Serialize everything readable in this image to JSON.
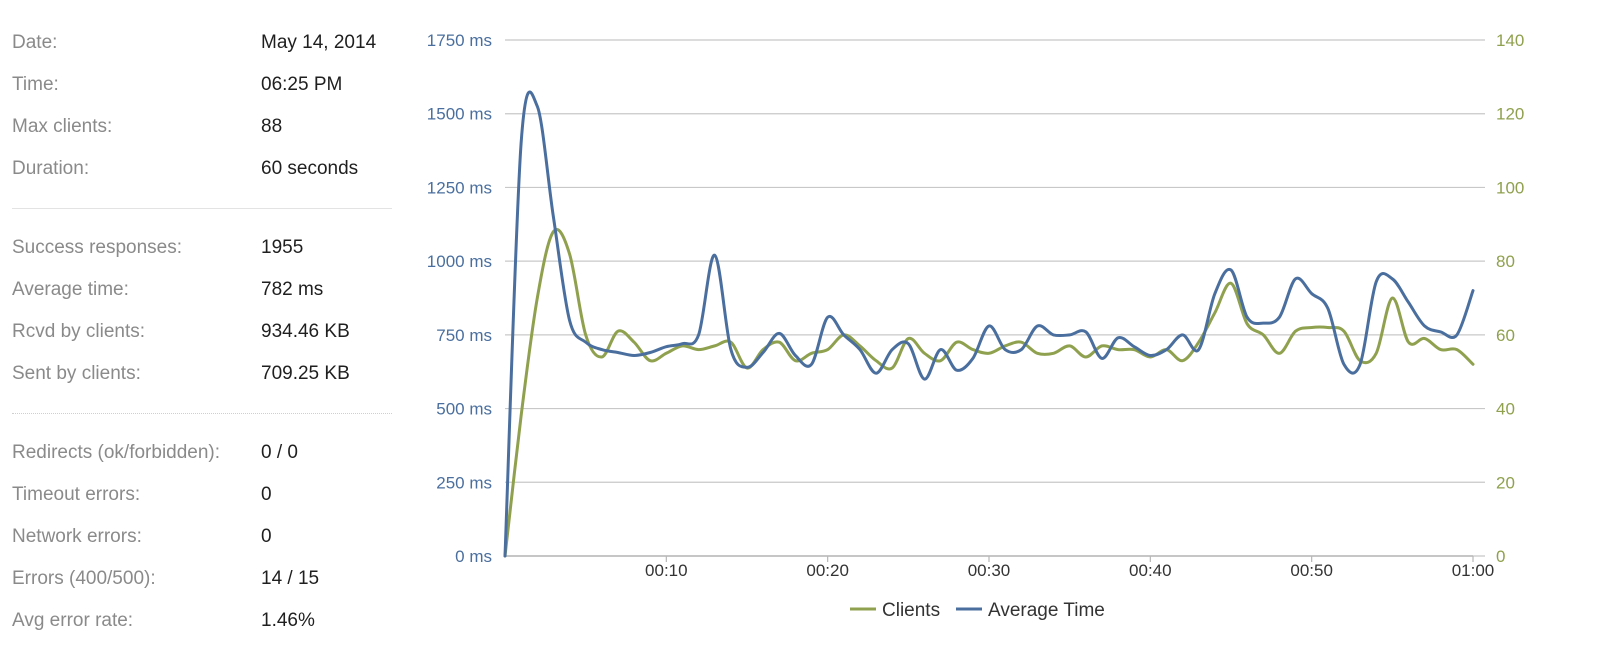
{
  "stats": {
    "group1": [
      {
        "label": "Date:",
        "value": "May 14, 2014"
      },
      {
        "label": "Time:",
        "value": "06:25 PM"
      },
      {
        "label": "Max clients:",
        "value": "88"
      },
      {
        "label": "Duration:",
        "value": "60 seconds"
      }
    ],
    "group2": [
      {
        "label": "Success responses:",
        "value": "1955"
      },
      {
        "label": "Average time:",
        "value": "782 ms"
      },
      {
        "label": "Rcvd by clients:",
        "value": "934.46 KB"
      },
      {
        "label": "Sent by clients:",
        "value": "709.25 KB"
      }
    ],
    "group3": [
      {
        "label": "Redirects (ok/forbidden):",
        "value": "0 / 0"
      },
      {
        "label": "Timeout errors:",
        "value": "0"
      },
      {
        "label": "Network errors:",
        "value": "0"
      },
      {
        "label": "Errors (400/500):",
        "value": "14 / 15"
      },
      {
        "label": "Avg error rate:",
        "value": "1.46%"
      }
    ]
  },
  "chart_data": {
    "type": "line",
    "x_ticks": [
      "00:10",
      "00:20",
      "00:30",
      "00:40",
      "00:50",
      "01:00"
    ],
    "y_left_ticks": [
      "0 ms",
      "250 ms",
      "500 ms",
      "750 ms",
      "1000 ms",
      "1250 ms",
      "1500 ms",
      "1750 ms"
    ],
    "y_right_ticks": [
      "0",
      "20",
      "40",
      "60",
      "80",
      "100",
      "120",
      "140"
    ],
    "ylim_left": [
      0,
      1750
    ],
    "ylim_right": [
      0,
      140
    ],
    "xlim": [
      0,
      60
    ],
    "grid": true,
    "legend_position": "bottom-center",
    "colors": {
      "clients": "#8fa14e",
      "average_time": "#4a6f9e",
      "left_axis": "#4a6f9e",
      "right_axis": "#8fa14e",
      "grid": "#c8c8c8",
      "x_axis_text": "#333333"
    },
    "series": [
      {
        "name": "Clients",
        "axis": "right",
        "points": [
          [
            0,
            0
          ],
          [
            1,
            38
          ],
          [
            2,
            70
          ],
          [
            3,
            88
          ],
          [
            4,
            82
          ],
          [
            5,
            60
          ],
          [
            6,
            54
          ],
          [
            7,
            61
          ],
          [
            8,
            58
          ],
          [
            9,
            53
          ],
          [
            10,
            55
          ],
          [
            11,
            57
          ],
          [
            12,
            56
          ],
          [
            13,
            57
          ],
          [
            14,
            58
          ],
          [
            15,
            51
          ],
          [
            16,
            56
          ],
          [
            17,
            58
          ],
          [
            18,
            53
          ],
          [
            19,
            55
          ],
          [
            20,
            56
          ],
          [
            21,
            60
          ],
          [
            22,
            57
          ],
          [
            23,
            53
          ],
          [
            24,
            51
          ],
          [
            25,
            59
          ],
          [
            26,
            55
          ],
          [
            27,
            53
          ],
          [
            28,
            58
          ],
          [
            29,
            56
          ],
          [
            30,
            55
          ],
          [
            31,
            57
          ],
          [
            32,
            58
          ],
          [
            33,
            55
          ],
          [
            34,
            55
          ],
          [
            35,
            57
          ],
          [
            36,
            54
          ],
          [
            37,
            57
          ],
          [
            38,
            56
          ],
          [
            39,
            56
          ],
          [
            40,
            54
          ],
          [
            41,
            56
          ],
          [
            42,
            53
          ],
          [
            43,
            58
          ],
          [
            44,
            66
          ],
          [
            45,
            74
          ],
          [
            46,
            63
          ],
          [
            47,
            60
          ],
          [
            48,
            55
          ],
          [
            49,
            61
          ],
          [
            50,
            62
          ],
          [
            51,
            62
          ],
          [
            52,
            61
          ],
          [
            53,
            53
          ],
          [
            54,
            55
          ],
          [
            55,
            70
          ],
          [
            56,
            58
          ],
          [
            57,
            59
          ],
          [
            58,
            56
          ],
          [
            59,
            56
          ],
          [
            60,
            52
          ]
        ]
      },
      {
        "name": "Average Time",
        "axis": "left",
        "points": [
          [
            0,
            0
          ],
          [
            1,
            1400
          ],
          [
            2,
            1525
          ],
          [
            3,
            1150
          ],
          [
            4,
            800
          ],
          [
            5,
            725
          ],
          [
            6,
            700
          ],
          [
            7,
            690
          ],
          [
            8,
            680
          ],
          [
            9,
            690
          ],
          [
            10,
            710
          ],
          [
            11,
            720
          ],
          [
            12,
            750
          ],
          [
            13,
            1020
          ],
          [
            14,
            700
          ],
          [
            15,
            640
          ],
          [
            16,
            690
          ],
          [
            17,
            755
          ],
          [
            18,
            680
          ],
          [
            19,
            650
          ],
          [
            20,
            810
          ],
          [
            21,
            750
          ],
          [
            22,
            700
          ],
          [
            23,
            620
          ],
          [
            24,
            700
          ],
          [
            25,
            720
          ],
          [
            26,
            600
          ],
          [
            27,
            700
          ],
          [
            28,
            630
          ],
          [
            29,
            670
          ],
          [
            30,
            780
          ],
          [
            31,
            700
          ],
          [
            32,
            700
          ],
          [
            33,
            780
          ],
          [
            34,
            750
          ],
          [
            35,
            750
          ],
          [
            36,
            760
          ],
          [
            37,
            670
          ],
          [
            38,
            740
          ],
          [
            39,
            710
          ],
          [
            40,
            680
          ],
          [
            41,
            700
          ],
          [
            42,
            750
          ],
          [
            43,
            700
          ],
          [
            44,
            890
          ],
          [
            45,
            970
          ],
          [
            46,
            810
          ],
          [
            47,
            790
          ],
          [
            48,
            810
          ],
          [
            49,
            940
          ],
          [
            50,
            890
          ],
          [
            51,
            840
          ],
          [
            52,
            650
          ],
          [
            53,
            650
          ],
          [
            54,
            930
          ],
          [
            55,
            940
          ],
          [
            56,
            860
          ],
          [
            57,
            780
          ],
          [
            58,
            760
          ],
          [
            59,
            750
          ],
          [
            60,
            900
          ]
        ]
      }
    ],
    "legend": [
      "Clients",
      "Average Time"
    ]
  }
}
